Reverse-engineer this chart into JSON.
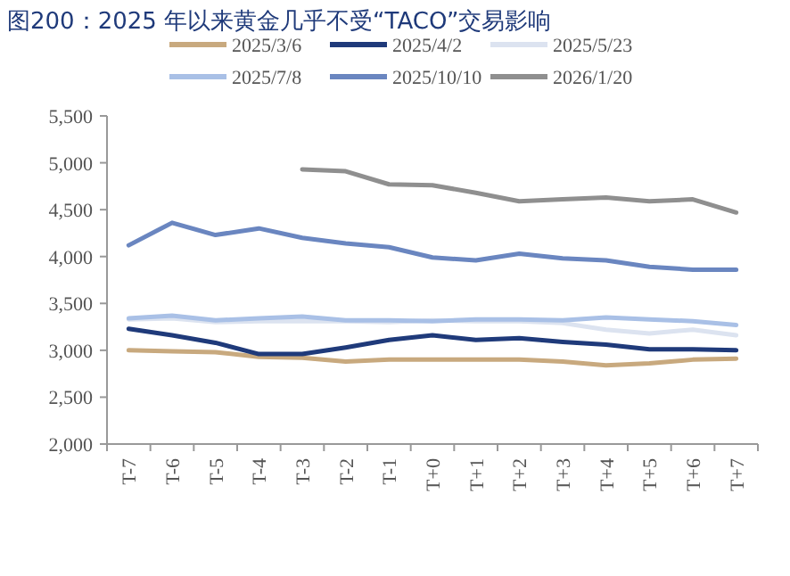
{
  "chart_data": {
    "type": "line",
    "title": "图200：2025 年以来黄金几乎不受“TACO”交易影响",
    "categories": [
      "T-7",
      "T-6",
      "T-5",
      "T-4",
      "T-3",
      "T-2",
      "T-1",
      "T+0",
      "T+1",
      "T+2",
      "T+3",
      "T+4",
      "T+5",
      "T+6",
      "T+7"
    ],
    "series": [
      {
        "name": "2025/3/6",
        "color": "#c8a97e",
        "values": [
          3000,
          2990,
          2980,
          2930,
          2920,
          2880,
          2900,
          2900,
          2900,
          2900,
          2880,
          2840,
          2860,
          2900,
          2910
        ]
      },
      {
        "name": "2025/4/2",
        "color": "#1f3a7a",
        "values": [
          3230,
          3160,
          3080,
          2960,
          2960,
          3030,
          3110,
          3160,
          3110,
          3130,
          3090,
          3060,
          3010,
          3010,
          3000
        ]
      },
      {
        "name": "2025/5/23",
        "color": "#dce3f0",
        "values": [
          3330,
          3340,
          3300,
          3310,
          3310,
          3310,
          3300,
          3320,
          3310,
          3310,
          3290,
          3220,
          3180,
          3220,
          3160
        ]
      },
      {
        "name": "2025/7/8",
        "color": "#a9c0e6",
        "values": [
          3340,
          3370,
          3320,
          3340,
          3360,
          3320,
          3320,
          3310,
          3330,
          3330,
          3320,
          3350,
          3330,
          3310,
          3270
        ]
      },
      {
        "name": "2025/10/10",
        "color": "#6a86c0",
        "values": [
          4120,
          4360,
          4230,
          4300,
          4200,
          4140,
          4100,
          3990,
          3960,
          4030,
          3980,
          3960,
          3890,
          3860,
          3860
        ]
      },
      {
        "name": "2026/1/20",
        "color": "#8f8f8f",
        "values": [
          null,
          null,
          null,
          null,
          4930,
          4910,
          4770,
          4760,
          4680,
          4590,
          4610,
          4630,
          4590,
          4610,
          4470
        ]
      }
    ],
    "ylim": [
      2000,
      5500
    ],
    "yticks": [
      {
        "value": 2000,
        "label": "2,000"
      },
      {
        "value": 2500,
        "label": "2,500"
      },
      {
        "value": 3000,
        "label": "3,000"
      },
      {
        "value": 3500,
        "label": "3,500"
      },
      {
        "value": 4000,
        "label": "4,000"
      },
      {
        "value": 4500,
        "label": "4,500"
      },
      {
        "value": 5000,
        "label": "5,000"
      },
      {
        "value": 5500,
        "label": "5,500"
      }
    ],
    "grid": false,
    "legend": "top",
    "marker": "none",
    "line_style": "solid"
  }
}
